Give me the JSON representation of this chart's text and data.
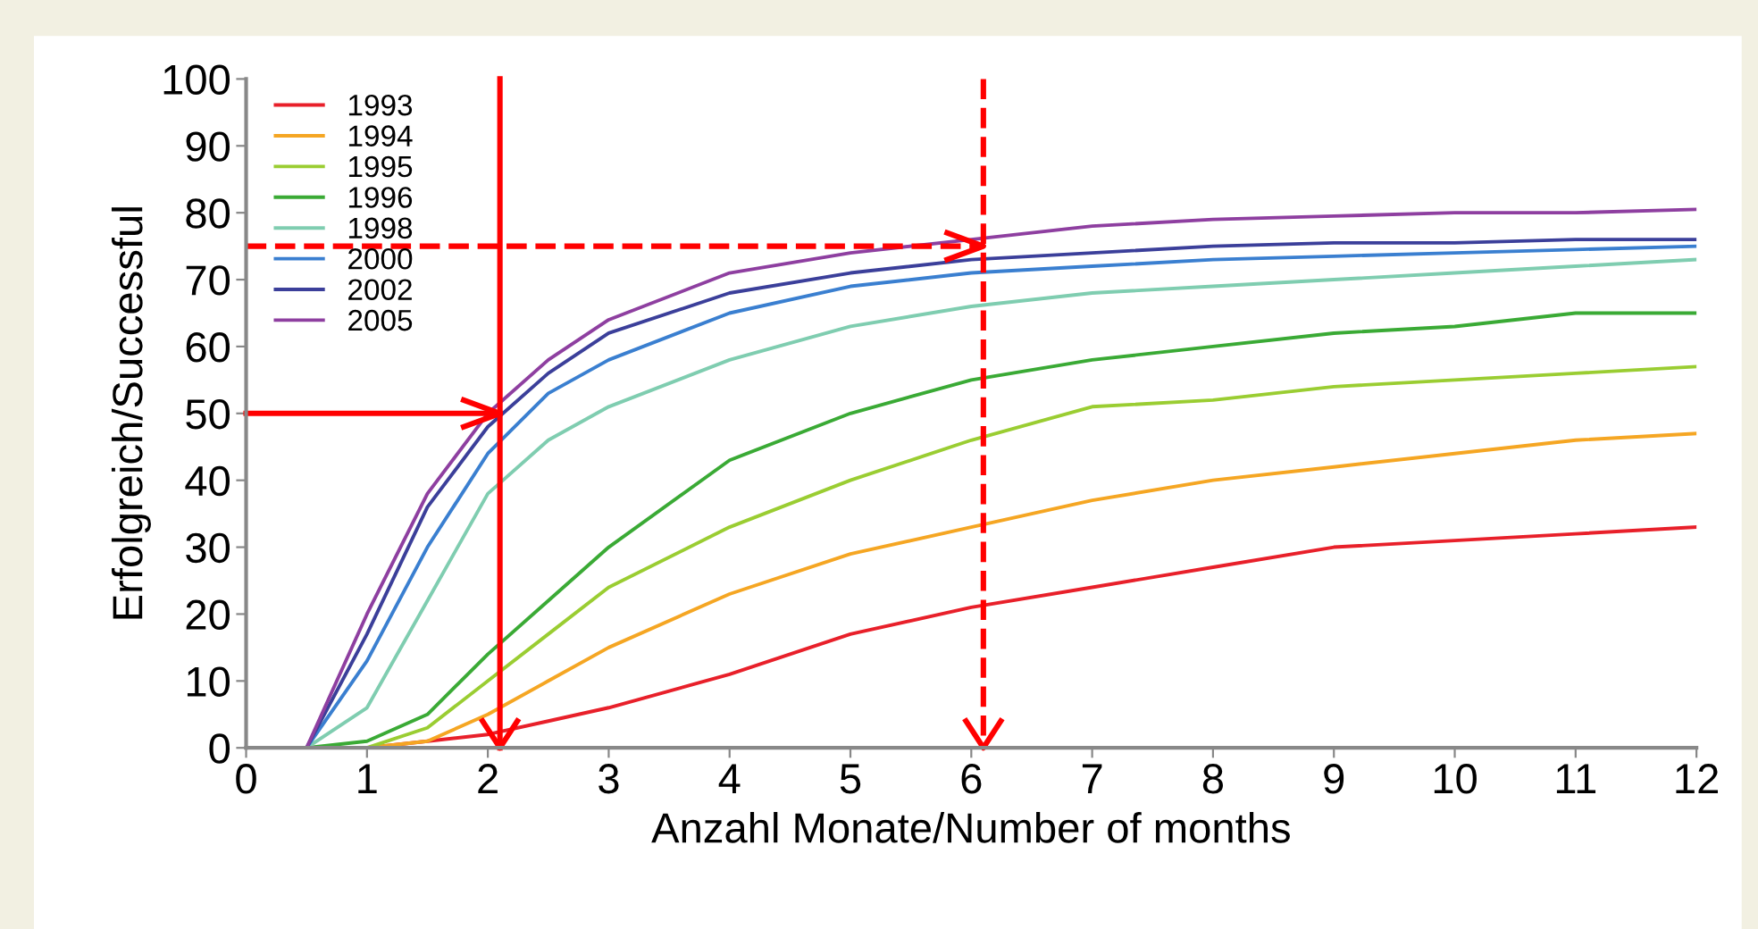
{
  "chart_data": {
    "type": "line",
    "xlabel": "Anzahl Monate/Number of months",
    "ylabel": "Erfolgreich/Successful",
    "x": [
      0,
      0.5,
      1,
      1.5,
      2,
      2.5,
      3,
      4,
      5,
      6,
      7,
      8,
      9,
      10,
      11,
      12
    ],
    "series": [
      {
        "name": "1993",
        "color": "#e8202a",
        "values": [
          0,
          0,
          0,
          1,
          2,
          4,
          6,
          11,
          17,
          21,
          24,
          27,
          30,
          31,
          32,
          33
        ]
      },
      {
        "name": "1994",
        "color": "#f5a623",
        "values": [
          0,
          0,
          0,
          1,
          5,
          10,
          15,
          23,
          29,
          33,
          37,
          40,
          42,
          44,
          46,
          47
        ]
      },
      {
        "name": "1995",
        "color": "#9acd32",
        "values": [
          0,
          0,
          0,
          3,
          10,
          17,
          24,
          33,
          40,
          46,
          51,
          52,
          54,
          55,
          56,
          57
        ]
      },
      {
        "name": "1996",
        "color": "#3aaa35",
        "values": [
          0,
          0,
          1,
          5,
          14,
          22,
          30,
          43,
          50,
          55,
          58,
          60,
          62,
          63,
          65,
          65
        ]
      },
      {
        "name": "1998",
        "color": "#7fcdb0",
        "values": [
          0,
          0,
          6,
          22,
          38,
          46,
          51,
          58,
          63,
          66,
          68,
          69,
          70,
          71,
          72,
          73
        ]
      },
      {
        "name": "2000",
        "color": "#3a7fd0",
        "values": [
          0,
          0,
          13,
          30,
          44,
          53,
          58,
          65,
          69,
          71,
          72,
          73,
          73.5,
          74,
          74.5,
          75
        ]
      },
      {
        "name": "2002",
        "color": "#3b3f9a",
        "values": [
          0,
          0,
          17,
          36,
          48,
          56,
          62,
          68,
          71,
          73,
          74,
          75,
          75.5,
          75.5,
          76,
          76
        ]
      },
      {
        "name": "2005",
        "color": "#8e3fa0",
        "values": [
          0,
          0,
          20,
          38,
          50,
          58,
          64,
          71,
          74,
          76,
          78,
          79,
          79.5,
          80,
          80,
          80.5
        ]
      }
    ],
    "xlim": [
      0,
      12
    ],
    "xticks": [
      0,
      1,
      2,
      3,
      4,
      5,
      6,
      7,
      8,
      9,
      10,
      11,
      12
    ],
    "ylim": [
      0,
      100
    ],
    "yticks": [
      0,
      10,
      20,
      30,
      40,
      50,
      60,
      70,
      80,
      90,
      100
    ],
    "ref_lines": [
      {
        "axis": "x",
        "value": 2.1,
        "color": "#ff0000",
        "line_style": "solid"
      },
      {
        "axis": "y",
        "value": 50,
        "color": "#ff0000",
        "line_style": "solid"
      },
      {
        "axis": "y",
        "value": 75,
        "color": "#ff0000",
        "line_style": "dashed"
      },
      {
        "axis": "x",
        "value": 6.1,
        "color": "#ff0000",
        "line_style": "dashed"
      }
    ],
    "legend": "top left",
    "grid": false,
    "line_style": "solid",
    "marker": "none"
  }
}
